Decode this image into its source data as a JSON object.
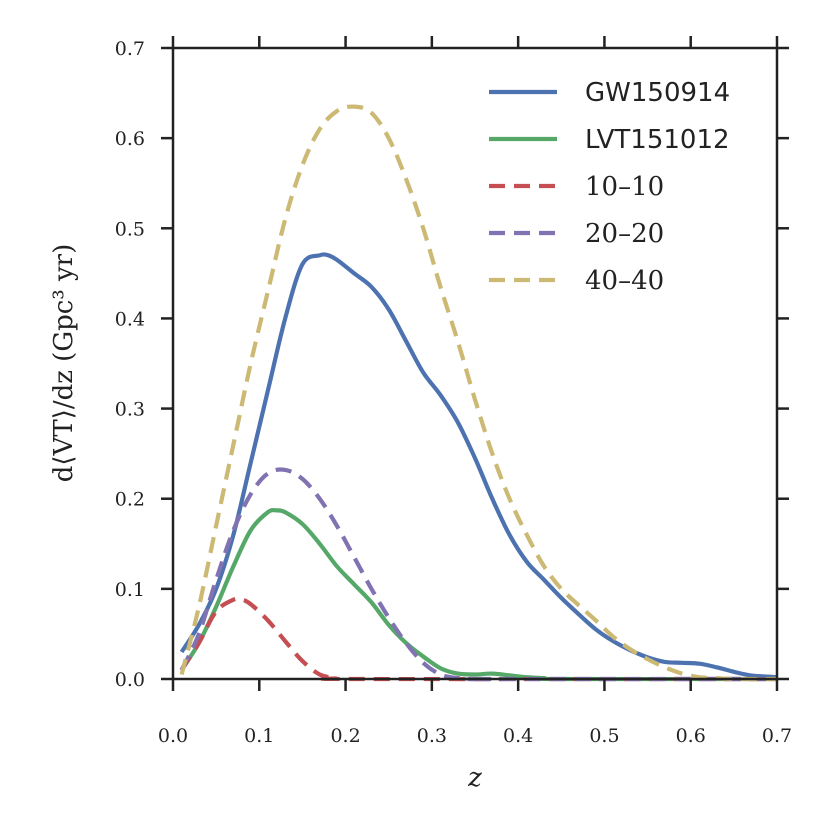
{
  "chart_data": {
    "type": "line",
    "xlabel": "z",
    "ylabel": "d⟨VT⟩/dz (Gpc³ yr)",
    "xlim": [
      0.0,
      0.7
    ],
    "ylim": [
      0.0,
      0.7
    ],
    "xticks": [
      "0.0",
      "0.1",
      "0.2",
      "0.3",
      "0.4",
      "0.5",
      "0.6",
      "0.7"
    ],
    "yticks": [
      "0.0",
      "0.1",
      "0.2",
      "0.3",
      "0.4",
      "0.5",
      "0.6",
      "0.7"
    ],
    "grid": false,
    "legend_position": "top-right",
    "series": [
      {
        "name": "GW150914",
        "color": "#4c72b0",
        "style": "solid",
        "x": [
          0.01,
          0.03,
          0.05,
          0.07,
          0.09,
          0.11,
          0.13,
          0.15,
          0.17,
          0.18,
          0.19,
          0.21,
          0.23,
          0.25,
          0.27,
          0.29,
          0.31,
          0.33,
          0.35,
          0.37,
          0.39,
          0.41,
          0.43,
          0.45,
          0.47,
          0.49,
          0.51,
          0.53,
          0.55,
          0.57,
          0.59,
          0.61,
          0.63,
          0.65,
          0.67,
          0.7
        ],
        "values": [
          0.03,
          0.06,
          0.1,
          0.16,
          0.24,
          0.32,
          0.4,
          0.46,
          0.47,
          0.47,
          0.465,
          0.45,
          0.435,
          0.41,
          0.375,
          0.34,
          0.315,
          0.285,
          0.245,
          0.2,
          0.16,
          0.13,
          0.11,
          0.09,
          0.072,
          0.055,
          0.042,
          0.032,
          0.024,
          0.019,
          0.018,
          0.017,
          0.013,
          0.008,
          0.004,
          0.002
        ]
      },
      {
        "name": "LVT151012",
        "color": "#55a868",
        "style": "solid",
        "x": [
          0.01,
          0.03,
          0.05,
          0.07,
          0.09,
          0.11,
          0.12,
          0.13,
          0.15,
          0.17,
          0.19,
          0.21,
          0.23,
          0.25,
          0.27,
          0.29,
          0.31,
          0.33,
          0.35,
          0.37,
          0.39,
          0.41,
          0.43,
          0.45,
          0.7
        ],
        "values": [
          0.01,
          0.04,
          0.08,
          0.125,
          0.165,
          0.185,
          0.187,
          0.185,
          0.172,
          0.15,
          0.125,
          0.105,
          0.085,
          0.06,
          0.04,
          0.025,
          0.012,
          0.006,
          0.005,
          0.006,
          0.004,
          0.002,
          0.001,
          0.0,
          0.0
        ]
      },
      {
        "name": "10–10",
        "color": "#c44e52",
        "style": "dashed",
        "x": [
          0.01,
          0.03,
          0.05,
          0.07,
          0.08,
          0.09,
          0.11,
          0.13,
          0.15,
          0.17,
          0.19,
          0.21,
          0.7
        ],
        "values": [
          0.01,
          0.04,
          0.075,
          0.088,
          0.088,
          0.083,
          0.065,
          0.042,
          0.02,
          0.005,
          0.001,
          0.0,
          0.0
        ]
      },
      {
        "name": "20–20",
        "color": "#8172b2",
        "style": "dashed",
        "x": [
          0.01,
          0.03,
          0.05,
          0.07,
          0.09,
          0.11,
          0.13,
          0.15,
          0.17,
          0.19,
          0.21,
          0.23,
          0.25,
          0.27,
          0.29,
          0.31,
          0.33,
          0.35,
          0.37,
          0.7
        ],
        "values": [
          0.01,
          0.05,
          0.11,
          0.165,
          0.205,
          0.228,
          0.232,
          0.222,
          0.2,
          0.17,
          0.135,
          0.1,
          0.068,
          0.04,
          0.018,
          0.005,
          0.001,
          0.0,
          0.0,
          0.0
        ]
      },
      {
        "name": "40–40",
        "color": "#ccb974",
        "style": "dashed",
        "x": [
          0.01,
          0.03,
          0.05,
          0.07,
          0.09,
          0.11,
          0.13,
          0.15,
          0.17,
          0.19,
          0.21,
          0.23,
          0.25,
          0.27,
          0.29,
          0.31,
          0.33,
          0.35,
          0.37,
          0.39,
          0.41,
          0.43,
          0.45,
          0.47,
          0.49,
          0.51,
          0.53,
          0.55,
          0.57,
          0.59,
          0.61,
          0.63,
          0.65,
          0.7
        ],
        "values": [
          0.005,
          0.08,
          0.17,
          0.26,
          0.35,
          0.43,
          0.51,
          0.57,
          0.61,
          0.63,
          0.635,
          0.628,
          0.6,
          0.555,
          0.5,
          0.435,
          0.375,
          0.31,
          0.25,
          0.2,
          0.16,
          0.125,
          0.1,
          0.082,
          0.065,
          0.047,
          0.033,
          0.022,
          0.013,
          0.006,
          0.002,
          0.001,
          0.0,
          0.0
        ]
      }
    ]
  }
}
